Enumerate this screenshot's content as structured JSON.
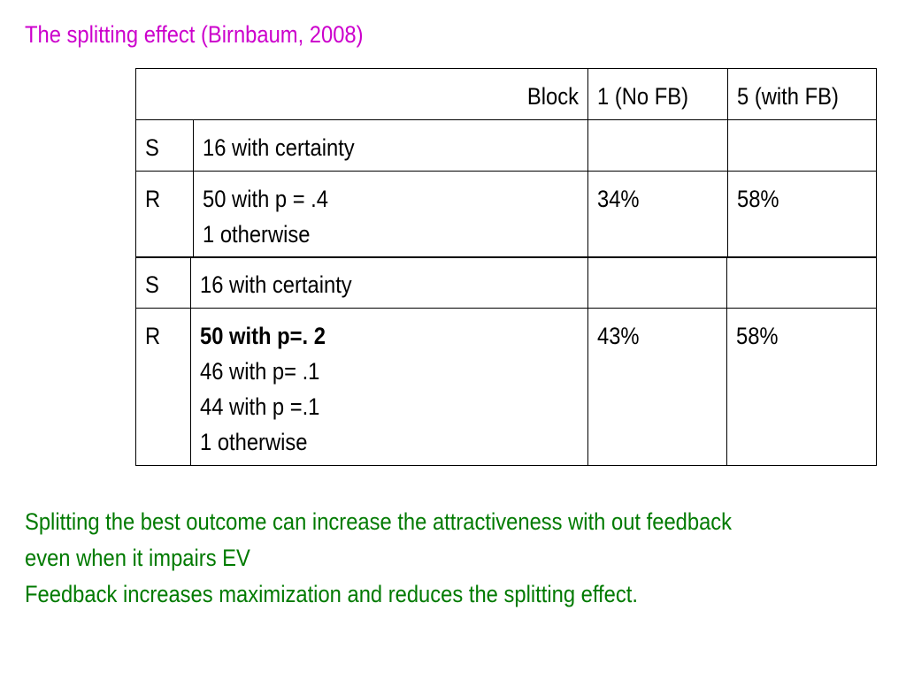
{
  "title": "The splitting effect (Birnbaum, 2008)",
  "table1": {
    "header": {
      "block": "Block",
      "col1": "1 (No FB)",
      "col2": "5 (with FB)"
    },
    "rows": [
      {
        "label": "S",
        "lines": [
          "16 with certainty"
        ],
        "v1": "",
        "v2": ""
      },
      {
        "label": "R",
        "lines": [
          "50 with p = .4",
          "1 otherwise"
        ],
        "v1": "34%",
        "v2": "58%"
      }
    ]
  },
  "table2": {
    "rows": [
      {
        "label": "S",
        "lines": [
          "16 with certainty"
        ],
        "v1": "",
        "v2": ""
      },
      {
        "label": "R",
        "lines": [
          "50 with p=. 2",
          "46 with p= .1",
          "44 with p =.1",
          "1 otherwise"
        ],
        "v1": "43%",
        "v2": "58%"
      }
    ]
  },
  "notes": [
    "Splitting the best outcome can increase the attractiveness with out feedback",
    "even when it impairs EV",
    "Feedback increases maximization and reduces the splitting effect."
  ],
  "colors": {
    "title": "#cc00cc",
    "notes": "#007a00"
  }
}
